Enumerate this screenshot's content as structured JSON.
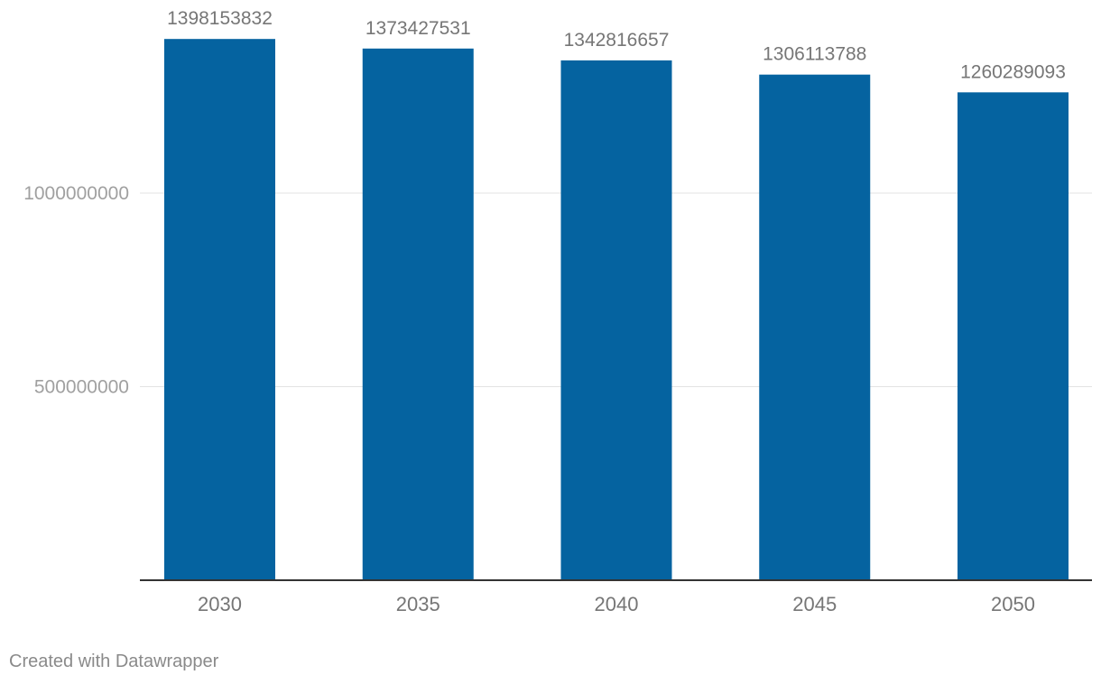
{
  "chart_data": {
    "type": "bar",
    "categories": [
      "2030",
      "2035",
      "2040",
      "2045",
      "2050"
    ],
    "values": [
      1398153832,
      1373427531,
      1342816657,
      1306113788,
      1260289093
    ],
    "value_labels": [
      "1398153832",
      "1373427531",
      "1342816657",
      "1306113788",
      "1260289093"
    ],
    "yticks": [
      500000000,
      1000000000
    ],
    "ytick_labels": [
      "500000000",
      "1000000000"
    ],
    "ylim": [
      0,
      1500000000
    ],
    "grid": true,
    "bar_color": "#0563a0",
    "label_color": "#767676",
    "axis_label_color": "#a0a0a0"
  },
  "footer": {
    "credit": "Created with Datawrapper"
  }
}
